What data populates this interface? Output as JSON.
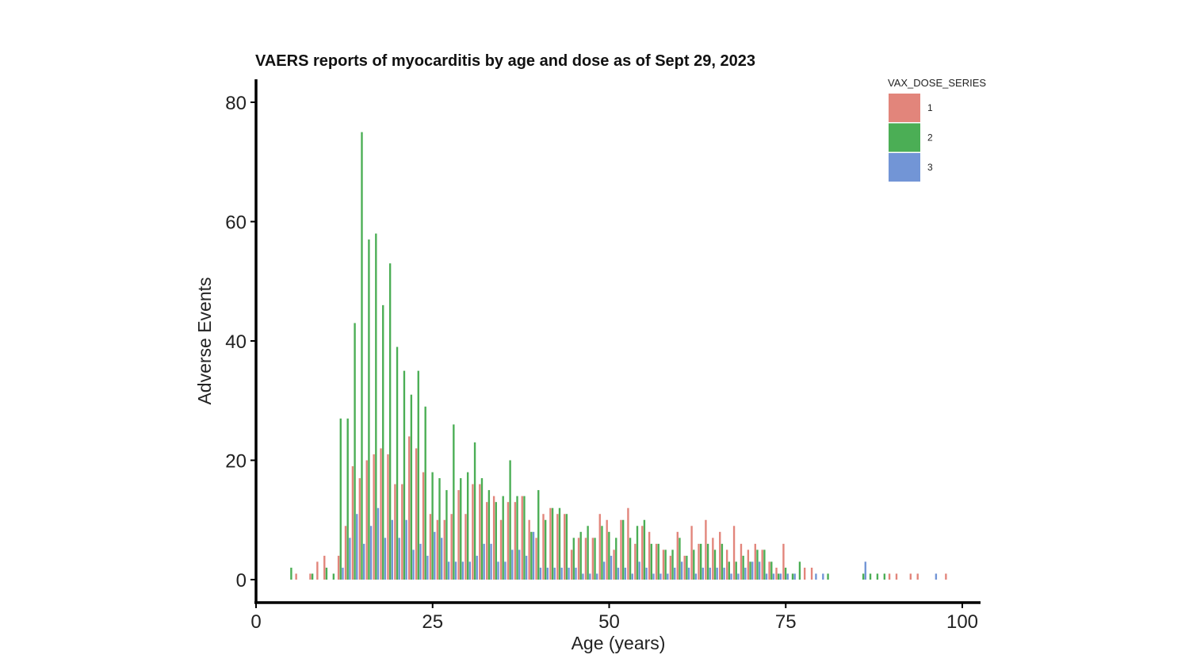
{
  "chart_data": {
    "type": "bar",
    "title": "VAERS reports of myocarditis by age and dose as of Sept 29, 2023",
    "xlabel": "Age (years)",
    "ylabel": "Adverse Events",
    "xlim": [
      0,
      100
    ],
    "ylim": [
      0,
      80
    ],
    "xticks": [
      "0",
      "25",
      "50",
      "75",
      "100"
    ],
    "yticks": [
      "0",
      "20",
      "40",
      "60",
      "80"
    ],
    "grid": false,
    "legend": {
      "title": "VAX_DOSE_SERIES",
      "position": "top-right",
      "entries": [
        "1",
        "2",
        "3"
      ]
    },
    "colors": {
      "1": "#E2857B",
      "2": "#4BAE55",
      "3": "#7295D6"
    },
    "x": [
      5,
      6,
      8,
      9,
      10,
      11,
      12,
      13,
      14,
      15,
      16,
      17,
      18,
      19,
      20,
      21,
      22,
      23,
      24,
      25,
      26,
      27,
      28,
      29,
      30,
      31,
      32,
      33,
      34,
      35,
      36,
      37,
      38,
      39,
      40,
      41,
      42,
      43,
      44,
      45,
      46,
      47,
      48,
      49,
      50,
      51,
      52,
      53,
      54,
      55,
      56,
      57,
      58,
      59,
      60,
      61,
      62,
      63,
      64,
      65,
      66,
      67,
      68,
      69,
      70,
      71,
      72,
      73,
      74,
      75,
      76,
      77,
      78,
      79,
      80,
      81,
      86,
      87,
      88,
      89,
      90,
      91,
      93,
      94,
      96,
      98
    ],
    "series": [
      {
        "name": "1",
        "values": [
          0,
          1,
          1,
          3,
          4,
          0,
          4,
          9,
          19,
          17,
          20,
          21,
          22,
          21,
          16,
          16,
          24,
          22,
          18,
          11,
          10,
          10,
          11,
          15,
          11,
          16,
          16,
          13,
          14,
          10,
          13,
          13,
          14,
          10,
          7,
          11,
          12,
          11,
          11,
          5,
          7,
          7,
          7,
          11,
          10,
          5,
          10,
          12,
          6,
          9,
          8,
          6,
          5,
          4,
          8,
          4,
          9,
          6,
          10,
          7,
          8,
          5,
          9,
          6,
          5,
          6,
          5,
          3,
          2,
          6,
          0,
          0,
          2,
          2,
          0,
          0,
          0,
          0,
          0,
          0,
          1,
          1,
          1,
          1,
          0,
          1
        ]
      },
      {
        "name": "2",
        "values": [
          2,
          0,
          1,
          0,
          2,
          1,
          27,
          27,
          43,
          75,
          57,
          58,
          46,
          53,
          39,
          35,
          31,
          35,
          29,
          18,
          17,
          15,
          26,
          17,
          18,
          23,
          17,
          15,
          13,
          14,
          20,
          14,
          14,
          8,
          15,
          10,
          12,
          12,
          11,
          7,
          8,
          9,
          7,
          9,
          8,
          7,
          10,
          7,
          9,
          10,
          6,
          6,
          5,
          5,
          7,
          4,
          5,
          6,
          6,
          5,
          6,
          3,
          3,
          4,
          3,
          5,
          5,
          3,
          1,
          2,
          1,
          3,
          0,
          0,
          0,
          1,
          1,
          1,
          1,
          1,
          0,
          0,
          0,
          0,
          0,
          0
        ]
      },
      {
        "name": "3",
        "values": [
          0,
          0,
          0,
          0,
          0,
          0,
          2,
          7,
          11,
          6,
          9,
          12,
          7,
          10,
          7,
          10,
          5,
          6,
          4,
          8,
          7,
          3,
          3,
          3,
          3,
          4,
          6,
          6,
          3,
          3,
          5,
          5,
          4,
          8,
          2,
          2,
          2,
          2,
          2,
          2,
          1,
          1,
          1,
          3,
          4,
          2,
          2,
          1,
          3,
          2,
          1,
          1,
          1,
          2,
          3,
          2,
          1,
          2,
          2,
          2,
          2,
          1,
          1,
          2,
          3,
          3,
          1,
          1,
          1,
          1,
          1,
          0,
          0,
          1,
          1,
          0,
          3,
          0,
          0,
          0,
          0,
          0,
          0,
          0,
          1,
          0
        ]
      }
    ]
  }
}
